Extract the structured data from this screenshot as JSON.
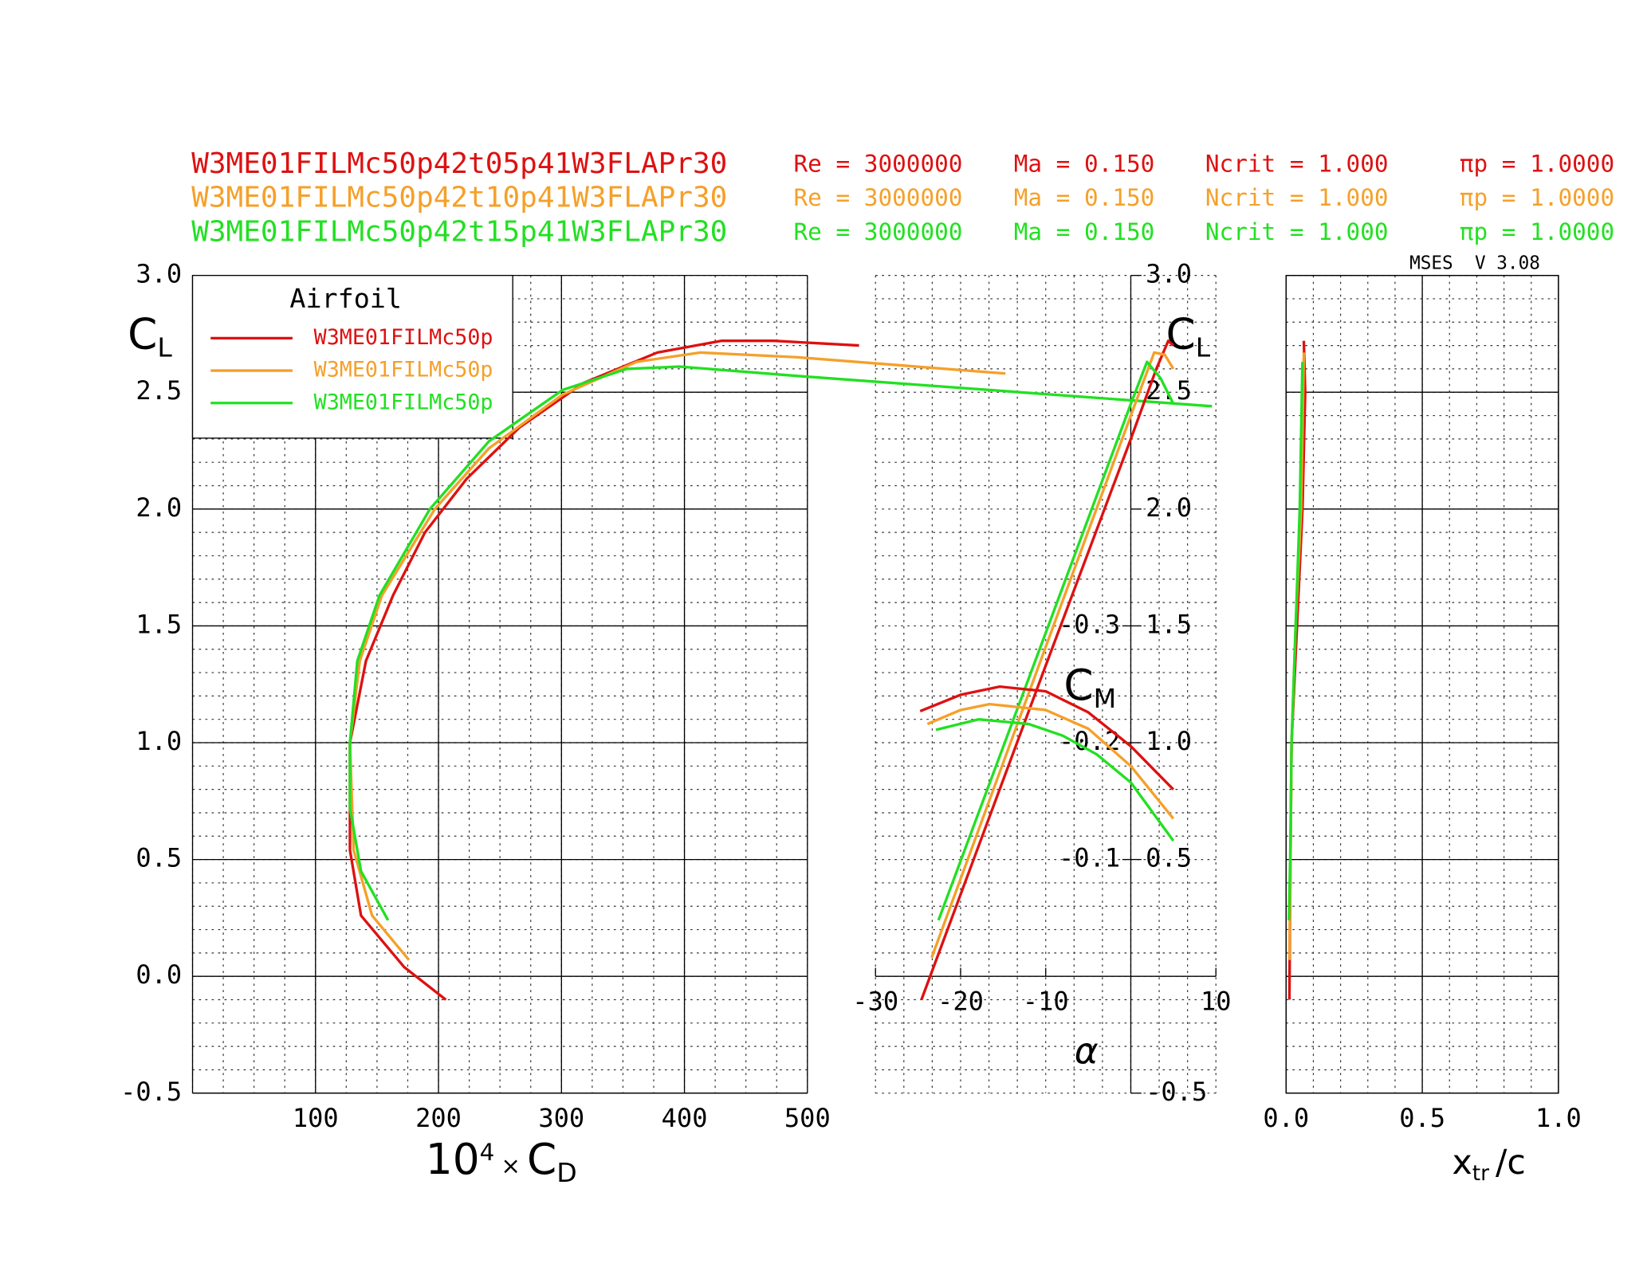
{
  "header": {
    "rows": [
      {
        "name": "W3ME01FILMc50p42t05p41W3FLAPr30",
        "re": "Re = 3000000",
        "ma": "Ma = 0.150",
        "ncrit": "Ncrit = 1.000",
        "pi": "πp = 1.0000"
      },
      {
        "name": "W3ME01FILMc50p42t10p41W3FLAPr30",
        "re": "Re = 3000000",
        "ma": "Ma = 0.150",
        "ncrit": "Ncrit = 1.000",
        "pi": "πp = 1.0000"
      },
      {
        "name": "W3ME01FILMc50p42t15p41W3FLAPr30",
        "re": "Re = 3000000",
        "ma": "Ma = 0.150",
        "ncrit": "Ncrit = 1.000",
        "pi": "πp = 1.0000"
      }
    ],
    "version": "MSES  V 3.08"
  },
  "chart_data": [
    {
      "type": "line",
      "xlabel": [
        "10",
        "4",
        "×",
        "C",
        "D"
      ],
      "ylabel": [
        "C",
        "L"
      ],
      "xlim": [
        0,
        500
      ],
      "ylim": [
        -0.5,
        3.0
      ],
      "xticks": [
        100,
        200,
        300,
        400,
        500
      ],
      "yticks": [
        {
          "value": 3.0,
          "label": "3.0"
        },
        2.5,
        {
          "value": 2.0,
          "label": "2.0"
        },
        1.5,
        {
          "value": 1.0,
          "label": "1.0"
        },
        0.5,
        {
          "value": 0.0,
          "label": "0.0"
        },
        -0.5
      ],
      "grid": true,
      "legend": {
        "title": "Airfoil",
        "corner": "upper left"
      },
      "series": [
        {
          "name": "W3ME01FILMc50p",
          "color": "#dd1111",
          "x": [
            206,
            172,
            137,
            128,
            128,
            141,
            163,
            189,
            223,
            266,
            318,
            378,
            430,
            473,
            542
          ],
          "values": [
            -0.1,
            0.04,
            0.26,
            0.54,
            1.0,
            1.35,
            1.63,
            1.9,
            2.13,
            2.35,
            2.54,
            2.67,
            2.72,
            2.72,
            2.7
          ]
        },
        {
          "name": "W3ME01FILMc50p",
          "color": "#f5a02a",
          "x": [
            176,
            146,
            131,
            128,
            136,
            154,
            197,
            241,
            301,
            361,
            413,
            491,
            661
          ],
          "values": [
            0.07,
            0.26,
            0.54,
            1.0,
            1.35,
            1.63,
            2.0,
            2.26,
            2.49,
            2.63,
            2.67,
            2.65,
            2.58
          ]
        },
        {
          "name": "W3ME01FILMc50p",
          "color": "#22e022",
          "x": [
            159,
            137,
            128,
            128,
            134,
            152,
            193,
            241,
            301,
            353,
            396,
            491,
            829
          ],
          "values": [
            0.24,
            0.45,
            0.72,
            1.0,
            1.35,
            1.63,
            2.0,
            2.29,
            2.51,
            2.6,
            2.61,
            2.57,
            2.44
          ]
        }
      ]
    },
    {
      "type": "line",
      "xlabel": [
        "α"
      ],
      "ylabel": [
        "C",
        "L"
      ],
      "xlim": [
        -30,
        10
      ],
      "ylim": [
        -0.5,
        3.0
      ],
      "xticks": [
        -30,
        -20,
        -10,
        10
      ],
      "yticks": [
        {
          "value": 3.0,
          "label": "3.0"
        },
        2.5,
        {
          "value": 2.0,
          "label": "2.0"
        },
        1.5,
        {
          "value": 1.0,
          "label": "1.0"
        },
        0.5,
        -0.5
      ],
      "series": [
        {
          "color": "#dd1111",
          "x": [
            -24.6,
            -10,
            0,
            3.0,
            4.4,
            5.0
          ],
          "values": [
            -0.1,
            1.33,
            2.3,
            2.6,
            2.72,
            2.7
          ]
        },
        {
          "color": "#f5a02a",
          "x": [
            -23.4,
            -10,
            0,
            2.75,
            4.0,
            5.0
          ],
          "values": [
            0.08,
            1.41,
            2.4,
            2.67,
            2.66,
            2.6
          ]
        },
        {
          "color": "#22e022",
          "x": [
            -22.6,
            -10,
            0,
            1.9,
            3.5,
            5.0
          ],
          "values": [
            0.24,
            1.47,
            2.45,
            2.63,
            2.56,
            2.45
          ]
        }
      ]
    },
    {
      "type": "line",
      "ylabel": [
        "C",
        "M"
      ],
      "xlim": [
        -30,
        10
      ],
      "ylim": [
        0.1,
        -0.6
      ],
      "yticks": [
        -0.3,
        -0.2,
        -0.1
      ],
      "series": [
        {
          "color": "#dd1111",
          "x": [
            -24.75,
            -20,
            -15.4,
            -10,
            -5,
            0,
            5
          ],
          "values": [
            -0.227,
            -0.241,
            -0.248,
            -0.244,
            -0.226,
            -0.197,
            -0.16
          ]
        },
        {
          "color": "#f5a02a",
          "x": [
            -23.9,
            -20,
            -16.6,
            -10,
            -5,
            0,
            5
          ],
          "values": [
            -0.216,
            -0.228,
            -0.233,
            -0.228,
            -0.212,
            -0.18,
            -0.135
          ]
        },
        {
          "color": "#22e022",
          "x": [
            -22.9,
            -17.9,
            -12,
            -8,
            -4,
            0,
            5
          ],
          "values": [
            -0.211,
            -0.22,
            -0.216,
            -0.206,
            -0.19,
            -0.166,
            -0.116
          ]
        }
      ]
    },
    {
      "type": "line",
      "xlabel": [
        "x",
        "tr",
        "/c"
      ],
      "xlim": [
        0,
        1
      ],
      "ylim": [
        -0.5,
        3.0
      ],
      "xticks": [
        {
          "value": 0,
          "label": "0.0"
        },
        0.5,
        {
          "value": 1,
          "label": "1.0"
        }
      ],
      "yticks": [
        3.0,
        2.5,
        2.0,
        1.5,
        1.0,
        0.5,
        0.0,
        -0.5
      ],
      "grid": true,
      "series": [
        {
          "color": "#dd1111",
          "x": [
            0.012,
            0.016,
            0.02,
            0.04,
            0.06,
            0.07,
            0.065
          ],
          "values": [
            -0.1,
            0.5,
            1.0,
            1.5,
            2.0,
            2.5,
            2.72
          ]
        },
        {
          "color": "#f5a02a",
          "x": [
            0.012,
            0.016,
            0.02,
            0.035,
            0.055,
            0.065
          ],
          "values": [
            0.07,
            0.5,
            1.0,
            1.5,
            2.0,
            2.67
          ]
        },
        {
          "color": "#22e022",
          "x": [
            0.01,
            0.015,
            0.02,
            0.035,
            0.05,
            0.06
          ],
          "values": [
            0.24,
            0.5,
            1.0,
            1.5,
            2.0,
            2.63
          ]
        }
      ]
    }
  ]
}
